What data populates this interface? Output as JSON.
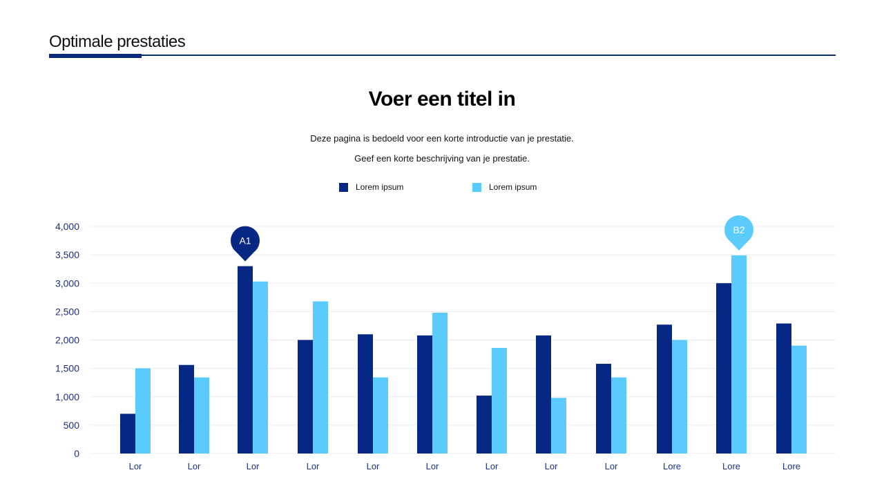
{
  "header": {
    "title": "Optimale prestaties"
  },
  "main": {
    "title": "Voer een titel in",
    "description": [
      "Deze pagina is bedoeld voor een korte introductie van je prestatie.",
      "Geef een korte beschrijving van je prestatie."
    ]
  },
  "colors": {
    "dark": "#062783",
    "light": "#5bcbfd",
    "grid": "#e8ecf2",
    "axis_text": "#1a2f80"
  },
  "chart_data": {
    "type": "bar",
    "categories": [
      "Lor",
      "Lor",
      "Lor",
      "Lor",
      "Lor",
      "Lor",
      "Lor",
      "Lor",
      "Lor",
      "Lore",
      "Lore",
      "Lore"
    ],
    "series": [
      {
        "name": "Lorem ipsum",
        "values": [
          700,
          1560,
          3300,
          2000,
          2100,
          2080,
          1020,
          2080,
          1580,
          2270,
          3000,
          2290
        ]
      },
      {
        "name": "Lorem ipsum",
        "values": [
          1500,
          1340,
          3030,
          2680,
          1340,
          2480,
          1860,
          980,
          1340,
          2000,
          3490,
          1900
        ]
      }
    ],
    "ylim": [
      0,
      4000
    ],
    "yticks": [
      "0",
      "500",
      "1,000",
      "1,500",
      "2,000",
      "2,500",
      "3,000",
      "3,500",
      "4,000"
    ],
    "grid": true,
    "legend": "top-center",
    "annotations": [
      {
        "label": "A1",
        "series": 0,
        "index": 2
      },
      {
        "label": "B2",
        "series": 1,
        "index": 10
      }
    ]
  }
}
